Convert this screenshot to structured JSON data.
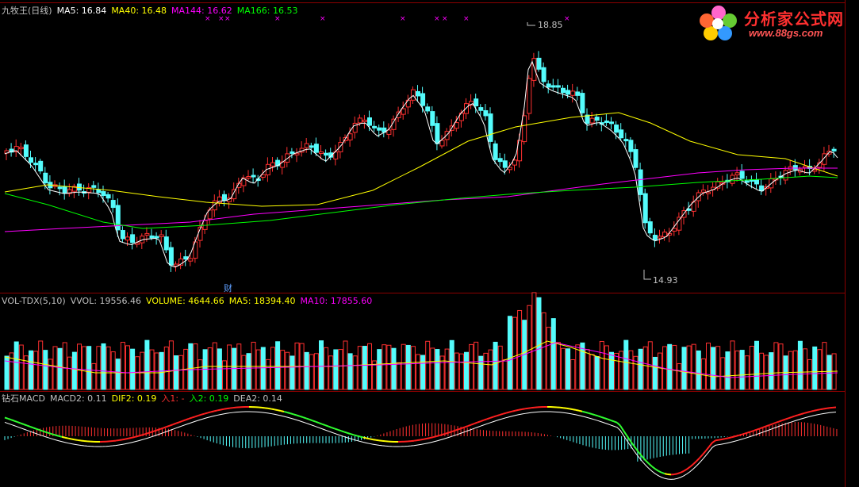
{
  "main_panel": {
    "title": "九牧王(日线)",
    "ma5": "MA5: 16.84",
    "ma40": "MA40: 16.48",
    "ma144": "MA144: 16.62",
    "ma166": "MA166: 16.53",
    "high_label": "18.85",
    "low_label": "14.93",
    "finance_marker": "财",
    "marker_symbol": "×"
  },
  "volume_panel": {
    "title": "VOL-TDX(5,10)",
    "vvol": "VVOL: 19556.46",
    "volume": "VOLUME: 4644.66",
    "ma5": "MA5: 18394.40",
    "ma10": "MA10: 17855.60"
  },
  "macd_panel": {
    "title": "钻石MACD",
    "macd2": "MACD2: 0.11",
    "dif2": "DIF2: 0.19",
    "in1": "入1: -",
    "in2": "入2: 0.19",
    "dea2": "DEA2: 0.14"
  },
  "logo": {
    "text": "分析家公式网",
    "url": "www.88gs.com"
  },
  "colors": {
    "up": "#ff3030",
    "down": "#54fcfc",
    "ma5": "#ffffff",
    "ma40": "#ffff00",
    "ma144": "#ff00ff",
    "ma166": "#00ff00",
    "grid": "#8b0000"
  }
}
